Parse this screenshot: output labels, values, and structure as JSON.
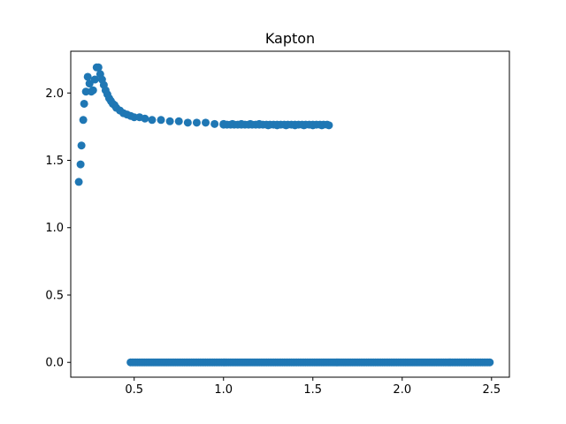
{
  "chart_data": {
    "type": "scatter",
    "title": "Kapton",
    "xlabel": "",
    "ylabel": "",
    "xlim": [
      0.145,
      2.6
    ],
    "ylim": [
      -0.11,
      2.31
    ],
    "xticks": [
      0.5,
      1.0,
      1.5,
      2.0,
      2.5
    ],
    "xtick_labels": [
      "0.5",
      "1.0",
      "1.5",
      "2.0",
      "2.5"
    ],
    "yticks": [
      0.0,
      0.5,
      1.0,
      1.5,
      2.0
    ],
    "ytick_labels": [
      "0.0",
      "0.5",
      "1.0",
      "1.5",
      "2.0"
    ],
    "grid": false,
    "marker_color": "#1f77b4",
    "series": [
      {
        "name": "",
        "x": [
          0.19,
          0.2,
          0.205,
          0.215,
          0.22,
          0.23,
          0.24,
          0.25,
          0.26,
          0.27,
          0.28,
          0.29,
          0.3,
          0.31,
          0.32,
          0.33,
          0.34,
          0.35,
          0.36,
          0.37,
          0.38,
          0.39,
          0.4,
          0.42,
          0.44,
          0.46,
          0.48,
          0.5,
          0.53,
          0.56,
          0.6,
          0.65,
          0.7,
          0.75,
          0.8,
          0.85,
          0.9,
          0.95,
          1.0,
          1.05,
          1.1,
          1.15,
          1.2,
          1.25,
          1.3,
          1.35,
          1.4,
          1.45,
          1.5,
          1.55,
          1.59
        ],
        "y": [
          1.34,
          1.47,
          1.61,
          1.8,
          1.92,
          2.01,
          2.12,
          2.07,
          2.01,
          2.02,
          2.1,
          2.19,
          2.19,
          2.14,
          2.1,
          2.06,
          2.02,
          1.99,
          1.96,
          1.94,
          1.92,
          1.91,
          1.89,
          1.87,
          1.85,
          1.84,
          1.83,
          1.82,
          1.82,
          1.81,
          1.8,
          1.8,
          1.79,
          1.79,
          1.78,
          1.78,
          1.78,
          1.77,
          1.77,
          1.77,
          1.77,
          1.77,
          1.77,
          1.76,
          1.76,
          1.76,
          1.76,
          1.76,
          1.76,
          1.76,
          1.76
        ]
      },
      {
        "name": "",
        "x_start": 0.48,
        "x_end": 2.49,
        "y_constant": 0.0
      }
    ]
  }
}
